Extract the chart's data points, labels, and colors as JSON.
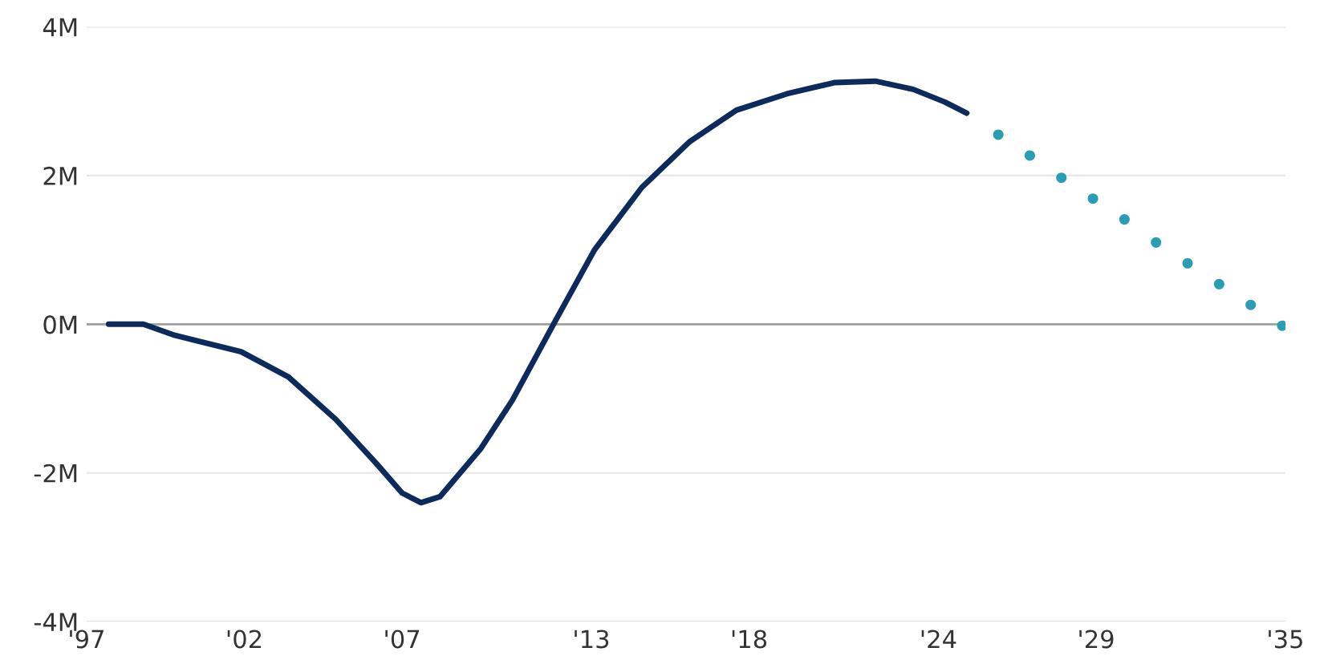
{
  "chart_data": {
    "type": "line",
    "xlim": [
      1997,
      2035
    ],
    "ylim": [
      -4,
      4
    ],
    "xticks": [
      {
        "value": 1997,
        "label": "'97"
      },
      {
        "value": 2002,
        "label": "'02"
      },
      {
        "value": 2007,
        "label": "'07"
      },
      {
        "value": 2013,
        "label": "'13"
      },
      {
        "value": 2018,
        "label": "'18"
      },
      {
        "value": 2024,
        "label": "'24"
      },
      {
        "value": 2029,
        "label": "'29"
      },
      {
        "value": 2035,
        "label": "'35"
      }
    ],
    "yticks": [
      {
        "value": -4,
        "label": "-4M"
      },
      {
        "value": -2,
        "label": "-2M"
      },
      {
        "value": 0,
        "label": "0M"
      },
      {
        "value": 2,
        "label": "2M"
      },
      {
        "value": 4,
        "label": "4M"
      }
    ],
    "grid": "y",
    "ref_lines": [
      {
        "axis": "y",
        "value": 0,
        "color": "#a0a0a0"
      }
    ],
    "series": [
      {
        "color": "#0d2a5c",
        "line_style": "solid",
        "x": [
          1997.7,
          1998.8,
          1999.8,
          2001.9,
          2003.4,
          2004.9,
          2006.2,
          2007.0,
          2007.6,
          2008.2,
          2009.5,
          2010.5,
          2011.8,
          2013.1,
          2014.6,
          2016.1,
          2017.6,
          2019.2,
          2020.7,
          2022.0,
          2023.2,
          2024.2,
          2024.9
        ],
        "values": [
          0,
          0,
          -0.15,
          -0.37,
          -0.71,
          -1.28,
          -1.88,
          -2.27,
          -2.4,
          -2.32,
          -1.67,
          -1.02,
          0,
          1.0,
          1.84,
          2.45,
          2.88,
          3.1,
          3.25,
          3.27,
          3.16,
          2.99,
          2.84
        ]
      },
      {
        "type": "scatter",
        "color": "#2a9db5",
        "marker": "circle",
        "x": [
          2025.9,
          2026.9,
          2027.9,
          2028.9,
          2029.9,
          2030.9,
          2031.9,
          2032.9,
          2033.9,
          2034.9
        ],
        "values": [
          2.55,
          2.27,
          1.97,
          1.69,
          1.41,
          1.1,
          0.82,
          0.54,
          0.26,
          -0.02
        ]
      }
    ]
  }
}
